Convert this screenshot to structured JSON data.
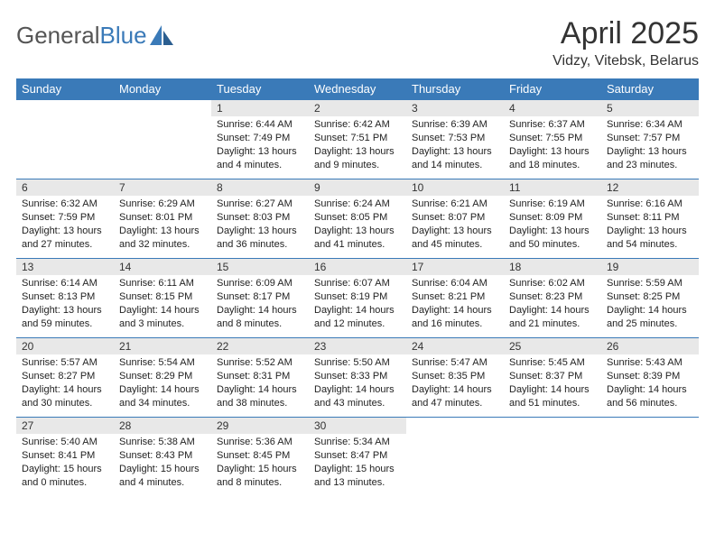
{
  "logo": {
    "part1": "General",
    "part2": "Blue"
  },
  "title": "April 2025",
  "location": "Vidzy, Vitebsk, Belarus",
  "theme": {
    "header_bg": "#3a7ab8",
    "header_fg": "#ffffff",
    "daynum_bg": "#e8e8e8",
    "border": "#3a7ab8",
    "text": "#222222"
  },
  "daynames": [
    "Sunday",
    "Monday",
    "Tuesday",
    "Wednesday",
    "Thursday",
    "Friday",
    "Saturday"
  ],
  "weeks": [
    [
      null,
      null,
      {
        "n": "1",
        "sr": "Sunrise: 6:44 AM",
        "ss": "Sunset: 7:49 PM",
        "dl": "Daylight: 13 hours and 4 minutes."
      },
      {
        "n": "2",
        "sr": "Sunrise: 6:42 AM",
        "ss": "Sunset: 7:51 PM",
        "dl": "Daylight: 13 hours and 9 minutes."
      },
      {
        "n": "3",
        "sr": "Sunrise: 6:39 AM",
        "ss": "Sunset: 7:53 PM",
        "dl": "Daylight: 13 hours and 14 minutes."
      },
      {
        "n": "4",
        "sr": "Sunrise: 6:37 AM",
        "ss": "Sunset: 7:55 PM",
        "dl": "Daylight: 13 hours and 18 minutes."
      },
      {
        "n": "5",
        "sr": "Sunrise: 6:34 AM",
        "ss": "Sunset: 7:57 PM",
        "dl": "Daylight: 13 hours and 23 minutes."
      }
    ],
    [
      {
        "n": "6",
        "sr": "Sunrise: 6:32 AM",
        "ss": "Sunset: 7:59 PM",
        "dl": "Daylight: 13 hours and 27 minutes."
      },
      {
        "n": "7",
        "sr": "Sunrise: 6:29 AM",
        "ss": "Sunset: 8:01 PM",
        "dl": "Daylight: 13 hours and 32 minutes."
      },
      {
        "n": "8",
        "sr": "Sunrise: 6:27 AM",
        "ss": "Sunset: 8:03 PM",
        "dl": "Daylight: 13 hours and 36 minutes."
      },
      {
        "n": "9",
        "sr": "Sunrise: 6:24 AM",
        "ss": "Sunset: 8:05 PM",
        "dl": "Daylight: 13 hours and 41 minutes."
      },
      {
        "n": "10",
        "sr": "Sunrise: 6:21 AM",
        "ss": "Sunset: 8:07 PM",
        "dl": "Daylight: 13 hours and 45 minutes."
      },
      {
        "n": "11",
        "sr": "Sunrise: 6:19 AM",
        "ss": "Sunset: 8:09 PM",
        "dl": "Daylight: 13 hours and 50 minutes."
      },
      {
        "n": "12",
        "sr": "Sunrise: 6:16 AM",
        "ss": "Sunset: 8:11 PM",
        "dl": "Daylight: 13 hours and 54 minutes."
      }
    ],
    [
      {
        "n": "13",
        "sr": "Sunrise: 6:14 AM",
        "ss": "Sunset: 8:13 PM",
        "dl": "Daylight: 13 hours and 59 minutes."
      },
      {
        "n": "14",
        "sr": "Sunrise: 6:11 AM",
        "ss": "Sunset: 8:15 PM",
        "dl": "Daylight: 14 hours and 3 minutes."
      },
      {
        "n": "15",
        "sr": "Sunrise: 6:09 AM",
        "ss": "Sunset: 8:17 PM",
        "dl": "Daylight: 14 hours and 8 minutes."
      },
      {
        "n": "16",
        "sr": "Sunrise: 6:07 AM",
        "ss": "Sunset: 8:19 PM",
        "dl": "Daylight: 14 hours and 12 minutes."
      },
      {
        "n": "17",
        "sr": "Sunrise: 6:04 AM",
        "ss": "Sunset: 8:21 PM",
        "dl": "Daylight: 14 hours and 16 minutes."
      },
      {
        "n": "18",
        "sr": "Sunrise: 6:02 AM",
        "ss": "Sunset: 8:23 PM",
        "dl": "Daylight: 14 hours and 21 minutes."
      },
      {
        "n": "19",
        "sr": "Sunrise: 5:59 AM",
        "ss": "Sunset: 8:25 PM",
        "dl": "Daylight: 14 hours and 25 minutes."
      }
    ],
    [
      {
        "n": "20",
        "sr": "Sunrise: 5:57 AM",
        "ss": "Sunset: 8:27 PM",
        "dl": "Daylight: 14 hours and 30 minutes."
      },
      {
        "n": "21",
        "sr": "Sunrise: 5:54 AM",
        "ss": "Sunset: 8:29 PM",
        "dl": "Daylight: 14 hours and 34 minutes."
      },
      {
        "n": "22",
        "sr": "Sunrise: 5:52 AM",
        "ss": "Sunset: 8:31 PM",
        "dl": "Daylight: 14 hours and 38 minutes."
      },
      {
        "n": "23",
        "sr": "Sunrise: 5:50 AM",
        "ss": "Sunset: 8:33 PM",
        "dl": "Daylight: 14 hours and 43 minutes."
      },
      {
        "n": "24",
        "sr": "Sunrise: 5:47 AM",
        "ss": "Sunset: 8:35 PM",
        "dl": "Daylight: 14 hours and 47 minutes."
      },
      {
        "n": "25",
        "sr": "Sunrise: 5:45 AM",
        "ss": "Sunset: 8:37 PM",
        "dl": "Daylight: 14 hours and 51 minutes."
      },
      {
        "n": "26",
        "sr": "Sunrise: 5:43 AM",
        "ss": "Sunset: 8:39 PM",
        "dl": "Daylight: 14 hours and 56 minutes."
      }
    ],
    [
      {
        "n": "27",
        "sr": "Sunrise: 5:40 AM",
        "ss": "Sunset: 8:41 PM",
        "dl": "Daylight: 15 hours and 0 minutes."
      },
      {
        "n": "28",
        "sr": "Sunrise: 5:38 AM",
        "ss": "Sunset: 8:43 PM",
        "dl": "Daylight: 15 hours and 4 minutes."
      },
      {
        "n": "29",
        "sr": "Sunrise: 5:36 AM",
        "ss": "Sunset: 8:45 PM",
        "dl": "Daylight: 15 hours and 8 minutes."
      },
      {
        "n": "30",
        "sr": "Sunrise: 5:34 AM",
        "ss": "Sunset: 8:47 PM",
        "dl": "Daylight: 15 hours and 13 minutes."
      },
      null,
      null,
      null
    ]
  ]
}
